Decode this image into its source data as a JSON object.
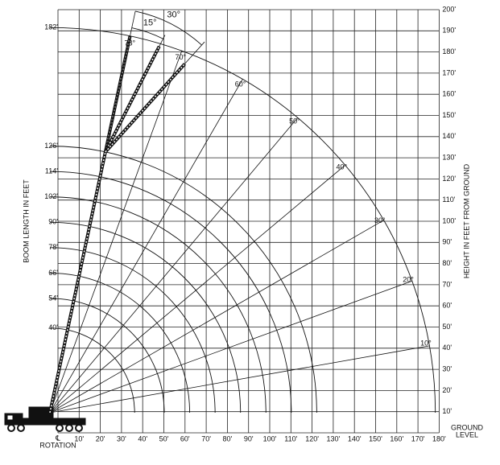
{
  "left_axis_title": "BOOM LENGTH IN FEET",
  "right_axis_title": "HEIGHT IN FEET FROM GROUND",
  "centerline_label": "℄",
  "rotation_label": "ROTATION",
  "ground_label": "GROUND",
  "level_label": "LEVEL",
  "boom_lengths": [
    {
      "value": 182,
      "label": "182'"
    },
    {
      "value": 126,
      "label": "126'"
    },
    {
      "value": 114,
      "label": "114'"
    },
    {
      "value": 102,
      "label": "102'"
    },
    {
      "value": 90,
      "label": "90'"
    },
    {
      "value": 78,
      "label": "78'"
    },
    {
      "value": 66,
      "label": "66'"
    },
    {
      "value": 54,
      "label": "54'"
    },
    {
      "value": 40,
      "label": "40'"
    }
  ],
  "boom_angles": [
    {
      "value": 10,
      "label": "10°"
    },
    {
      "value": 20,
      "label": "20°"
    },
    {
      "value": 30,
      "label": "30°"
    },
    {
      "value": 40,
      "label": "40°"
    },
    {
      "value": 50,
      "label": "50°"
    },
    {
      "value": 60,
      "label": "60°"
    },
    {
      "value": 70,
      "label": "70°"
    },
    {
      "value": 78,
      "label": "78°"
    }
  ],
  "jib_offsets": [
    {
      "value": 15,
      "label": "15°"
    },
    {
      "value": 30,
      "label": "30°"
    }
  ],
  "heights": [
    {
      "value": 10,
      "label": "10'"
    },
    {
      "value": 20,
      "label": "20'"
    },
    {
      "value": 30,
      "label": "30'"
    },
    {
      "value": 40,
      "label": "40'"
    },
    {
      "value": 50,
      "label": "50'"
    },
    {
      "value": 60,
      "label": "60'"
    },
    {
      "value": 70,
      "label": "70'"
    },
    {
      "value": 80,
      "label": "80'"
    },
    {
      "value": 90,
      "label": "90'"
    },
    {
      "value": 100,
      "label": "100'"
    },
    {
      "value": 110,
      "label": "110'"
    },
    {
      "value": 120,
      "label": "120'"
    },
    {
      "value": 130,
      "label": "130'"
    },
    {
      "value": 140,
      "label": "140'"
    },
    {
      "value": 150,
      "label": "150'"
    },
    {
      "value": 160,
      "label": "160'"
    },
    {
      "value": 170,
      "label": "170'"
    },
    {
      "value": 180,
      "label": "180'"
    },
    {
      "value": 190,
      "label": "190'"
    },
    {
      "value": 200,
      "label": "200'"
    }
  ],
  "radii": [
    {
      "value": 10,
      "label": "10'"
    },
    {
      "value": 20,
      "label": "20'"
    },
    {
      "value": 30,
      "label": "30'"
    },
    {
      "value": 40,
      "label": "40'"
    },
    {
      "value": 50,
      "label": "50'"
    },
    {
      "value": 60,
      "label": "60'"
    },
    {
      "value": 70,
      "label": "70'"
    },
    {
      "value": 80,
      "label": "80'"
    },
    {
      "value": 90,
      "label": "90'"
    },
    {
      "value": 100,
      "label": "100'"
    },
    {
      "value": 110,
      "label": "110'"
    },
    {
      "value": 120,
      "label": "120'"
    },
    {
      "value": 130,
      "label": "130'"
    },
    {
      "value": 140,
      "label": "140'"
    },
    {
      "value": 150,
      "label": "150'"
    },
    {
      "value": 160,
      "label": "160'"
    },
    {
      "value": 170,
      "label": "170'"
    },
    {
      "value": 180,
      "label": "180'"
    }
  ]
}
